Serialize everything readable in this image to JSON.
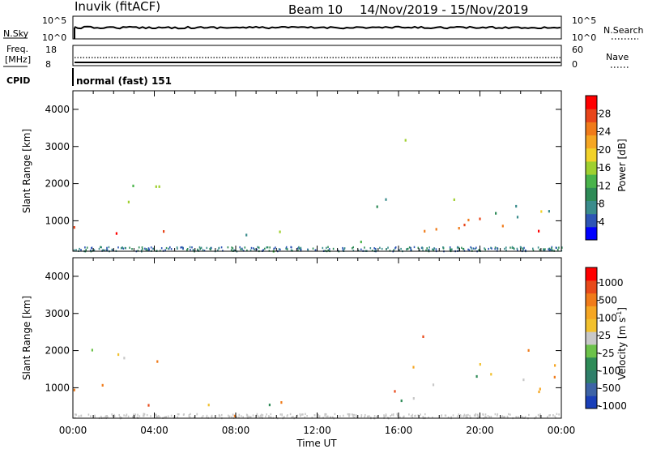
{
  "header": {
    "station": "Inuvik (fitACF)",
    "beam": "Beam 10",
    "dates": "14/Nov/2019 - 15/Nov/2019"
  },
  "top_panels": {
    "nsky_label": "N.Sky",
    "nsky_ticks_left": [
      "10^5",
      "10^0"
    ],
    "nsky_ticks_right": [
      "10^5",
      "10^0"
    ],
    "nsearch_label": "N.Search",
    "freq_label_1": "Freq.",
    "freq_label_2": "[MHz]",
    "freq_ticks_left": [
      "18",
      "8"
    ],
    "nave_ticks_right": [
      "60",
      "0"
    ],
    "nave_label": "Nave",
    "cpid_label": "CPID",
    "cpid_text": "normal (fast) 151"
  },
  "chart_data": [
    {
      "type": "heatmap",
      "panel": "power",
      "ylabel": "Slant Range [km]",
      "xlabel": "Time UT",
      "x_ticks": [
        "00:00",
        "04:00",
        "08:00",
        "12:00",
        "16:00",
        "20:00",
        "00:00"
      ],
      "xlim_hours": [
        0,
        24
      ],
      "ylim": [
        180,
        4500
      ],
      "y_ticks": [
        1000,
        2000,
        3000,
        4000
      ],
      "colorbar": {
        "label": "Power [dB]",
        "range": [
          0,
          32
        ],
        "ticks": [
          4,
          8,
          12,
          16,
          20,
          24,
          28
        ],
        "colors": [
          "#0000ff",
          "#2d55b5",
          "#3a8c8c",
          "#2e8b57",
          "#49b34a",
          "#9fd02f",
          "#f2d22a",
          "#f5a623",
          "#f07b1a",
          "#e8451a",
          "#ff0000"
        ]
      },
      "echo_regions": [
        {
          "t": [
            0.0,
            4.6
          ],
          "r": [
            550,
            2050
          ],
          "core": [
            650,
            1100
          ],
          "intensity": 0.75
        },
        {
          "t": [
            5.5,
            7.0
          ],
          "r": [
            400,
            1200
          ],
          "core": [
            450,
            700
          ],
          "intensity": 0.4
        },
        {
          "t": [
            7.0,
            14.5
          ],
          "r": [
            200,
            800
          ],
          "core": [
            250,
            450
          ],
          "intensity": 0.55
        },
        {
          "t": [
            14.8,
            24.0
          ],
          "r": [
            600,
            1700
          ],
          "core": [
            750,
            1100
          ],
          "intensity": 0.85
        },
        {
          "t": [
            14.8,
            17.5
          ],
          "r": [
            1600,
            3800
          ],
          "core": [
            0,
            0
          ],
          "intensity": 0.2
        },
        {
          "t": [
            20.5,
            24.0
          ],
          "r": [
            1300,
            2300
          ],
          "core": [
            0,
            0
          ],
          "intensity": 0.25
        }
      ]
    },
    {
      "type": "heatmap",
      "panel": "velocity",
      "ylabel": "Slant Range [km]",
      "xlabel": "Time UT",
      "x_ticks": [
        "00:00",
        "04:00",
        "08:00",
        "12:00",
        "16:00",
        "20:00",
        "00:00"
      ],
      "xlim_hours": [
        0,
        24
      ],
      "ylim": [
        180,
        4500
      ],
      "y_ticks": [
        1000,
        2000,
        3000,
        4000
      ],
      "colorbar": {
        "label": "Velocity [m s^-1]",
        "tick_labels": [
          "1000",
          "500",
          "100",
          "25",
          "-25",
          "-100",
          "-500",
          "-1000"
        ],
        "colors": [
          "#1a3fb8",
          "#3d63a6",
          "#2f7f6a",
          "#2e8b57",
          "#6cc24a",
          "#c8c8c8",
          "#f2c12e",
          "#f5a623",
          "#f07b1a",
          "#e84a1a",
          "#ff0000"
        ]
      },
      "echo_regions": [
        {
          "t": [
            0.0,
            4.6
          ],
          "r": [
            550,
            2050
          ],
          "core": [
            650,
            1100
          ],
          "intensity": 0.7
        },
        {
          "t": [
            5.5,
            7.0
          ],
          "r": [
            400,
            1200
          ],
          "core": [
            450,
            700
          ],
          "intensity": 0.35
        },
        {
          "t": [
            7.0,
            14.5
          ],
          "r": [
            200,
            800
          ],
          "core": [
            250,
            450
          ],
          "intensity": 0.45
        },
        {
          "t": [
            14.8,
            24.0
          ],
          "r": [
            600,
            1700
          ],
          "core": [
            750,
            1100
          ],
          "intensity": 0.75
        },
        {
          "t": [
            14.8,
            17.5
          ],
          "r": [
            1600,
            3800
          ],
          "core": [
            0,
            0
          ],
          "intensity": 0.2
        },
        {
          "t": [
            20.5,
            24.0
          ],
          "r": [
            1300,
            2300
          ],
          "core": [
            0,
            0
          ],
          "intensity": 0.25
        }
      ]
    }
  ]
}
